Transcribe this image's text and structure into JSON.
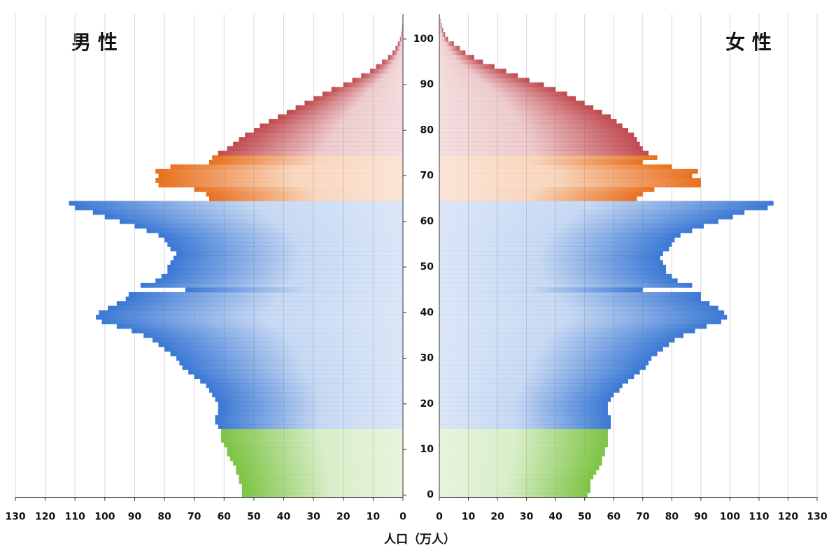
{
  "chart_data": {
    "type": "pyramid",
    "series": [
      {
        "name": "男 性",
        "side": "left",
        "values": [
          54,
          54,
          54,
          55,
          55,
          56,
          56,
          57,
          58,
          59,
          59,
          60,
          61,
          61,
          61,
          62,
          63,
          63,
          62,
          62,
          62,
          63,
          64,
          65,
          66,
          68,
          70,
          72,
          74,
          75,
          76,
          78,
          80,
          82,
          84,
          87,
          91,
          96,
          101,
          103,
          102,
          99,
          96,
          93,
          92,
          73,
          88,
          83,
          81,
          79,
          79,
          78,
          77,
          76,
          78,
          79,
          80,
          82,
          86,
          90,
          95,
          100,
          104,
          110,
          112,
          65,
          66,
          70,
          82,
          83,
          82,
          83,
          78,
          65,
          64,
          62,
          59,
          57,
          55,
          53,
          50,
          48,
          45,
          42,
          39,
          36,
          33,
          30,
          27,
          24,
          20,
          17,
          14,
          11,
          9,
          7,
          5,
          3.5,
          2.5,
          1.7,
          1,
          0.6,
          0.4,
          0.2,
          0.1
        ]
      },
      {
        "name": "女 性",
        "side": "right",
        "values": [
          51,
          52,
          52,
          52,
          53,
          54,
          55,
          56,
          56,
          57,
          57,
          58,
          58,
          58,
          58,
          59,
          59,
          59,
          58,
          58,
          58,
          59,
          60,
          62,
          63,
          65,
          67,
          69,
          71,
          72,
          73,
          75,
          77,
          79,
          81,
          84,
          88,
          92,
          97,
          99,
          98,
          96,
          93,
          90,
          90,
          70,
          87,
          82,
          80,
          78,
          78,
          77,
          76,
          77,
          79,
          80,
          81,
          83,
          87,
          91,
          96,
          101,
          105,
          113,
          115,
          68,
          70,
          74,
          90,
          90,
          87,
          89,
          80,
          70,
          75,
          72,
          70,
          69,
          68,
          67,
          65,
          63,
          61,
          59,
          56,
          53,
          50,
          47,
          44,
          40,
          36,
          31,
          27,
          23,
          19,
          15,
          12,
          9,
          7,
          5,
          3,
          2,
          1.3,
          0.8,
          0.4
        ]
      }
    ],
    "ages": [
      0,
      1,
      2,
      3,
      4,
      5,
      6,
      7,
      8,
      9,
      10,
      11,
      12,
      13,
      14,
      15,
      16,
      17,
      18,
      19,
      20,
      21,
      22,
      23,
      24,
      25,
      26,
      27,
      28,
      29,
      30,
      31,
      32,
      33,
      34,
      35,
      36,
      37,
      38,
      39,
      40,
      41,
      42,
      43,
      44,
      45,
      46,
      47,
      48,
      49,
      50,
      51,
      52,
      53,
      54,
      55,
      56,
      57,
      58,
      59,
      60,
      61,
      62,
      63,
      64,
      65,
      66,
      67,
      68,
      69,
      70,
      71,
      72,
      73,
      74,
      75,
      76,
      77,
      78,
      79,
      80,
      81,
      82,
      83,
      84,
      85,
      86,
      87,
      88,
      89,
      90,
      91,
      92,
      93,
      94,
      95,
      96,
      97,
      98,
      99,
      100,
      101,
      102,
      103,
      104
    ],
    "color_groups": [
      {
        "from": 0,
        "color": "#7cc444"
      },
      {
        "from": 15,
        "color": "#3a78d4"
      },
      {
        "from": 65,
        "color": "#e8701e"
      },
      {
        "from": 75,
        "color": "#c04a50"
      }
    ],
    "xlabel": "人口（万人）",
    "xlim": [
      0,
      130
    ],
    "xticks": [
      0,
      10,
      20,
      30,
      40,
      50,
      60,
      70,
      80,
      90,
      100,
      110,
      120,
      130
    ],
    "ylim": [
      -0.5,
      105.5
    ],
    "yticks": [
      0,
      10,
      20,
      30,
      40,
      50,
      60,
      70,
      80,
      90,
      100
    ],
    "grid": true
  }
}
